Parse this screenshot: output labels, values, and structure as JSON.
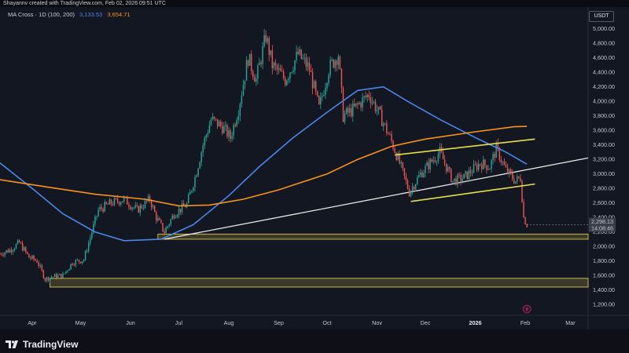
{
  "header": {
    "attribution": "Shayannv created with TradingView.com, Feb 02, 2026 09:51 UTC"
  },
  "legend": {
    "title": "MA Cross · 1D (100, 200)",
    "ma100_value": "3,133.53",
    "ma200_value": "3,654.71"
  },
  "currency_label": "USDT",
  "branding": {
    "logo_text": "TradingView"
  },
  "colors": {
    "background": "#131722",
    "candle_up": "#26a69a",
    "candle_down": "#ef5350",
    "ma100": "#4a86e8",
    "ma200": "#f7931a",
    "zone": "#c9b84a",
    "channel": "#e8e04a",
    "trendline": "#e8e8e8"
  },
  "chart_data": {
    "type": "candlestick",
    "ylim": [
      1050,
      5300
    ],
    "y_ticks": [
      1200,
      1400,
      1600,
      1800,
      2000,
      2200,
      2400,
      2600,
      2800,
      3000,
      3200,
      3400,
      3600,
      3800,
      4000,
      4200,
      4400,
      4600,
      4800,
      5000
    ],
    "y_tick_labels": [
      "1,200.00",
      "1,400.00",
      "1,600.00",
      "1,800.00",
      "2,000.00",
      "2,200.00",
      "2,400.00",
      "2,600.00",
      "2,800.00",
      "3,000.00",
      "3,200.00",
      "3,400.00",
      "3,600.00",
      "3,800.00",
      "4,000.00",
      "4,200.00",
      "4,400.00",
      "4,600.00",
      "4,800.00",
      "5,000.00"
    ],
    "x_range": [
      "2025-03-12",
      "2026-03-12"
    ],
    "x_ticks": [
      {
        "label": "Apr",
        "date": "2025-04-01"
      },
      {
        "label": "May",
        "date": "2025-05-01"
      },
      {
        "label": "Jun",
        "date": "2025-06-01"
      },
      {
        "label": "Jul",
        "date": "2025-07-01"
      },
      {
        "label": "Aug",
        "date": "2025-08-01"
      },
      {
        "label": "Sep",
        "date": "2025-09-01"
      },
      {
        "label": "Oct",
        "date": "2025-10-01"
      },
      {
        "label": "Nov",
        "date": "2025-11-01"
      },
      {
        "label": "Dec",
        "date": "2025-12-01"
      },
      {
        "label": "2026",
        "date": "2026-01-01",
        "bold": true
      },
      {
        "label": "Feb",
        "date": "2026-02-01"
      },
      {
        "label": "Mar",
        "date": "2026-03-01"
      }
    ],
    "price_path": [
      [
        "2025-03-12",
        1900
      ],
      [
        "2025-03-18",
        1950
      ],
      [
        "2025-03-24",
        2050
      ],
      [
        "2025-03-30",
        1850
      ],
      [
        "2025-04-04",
        1800
      ],
      [
        "2025-04-09",
        1550
      ],
      [
        "2025-04-13",
        1580
      ],
      [
        "2025-04-20",
        1600
      ],
      [
        "2025-04-26",
        1780
      ],
      [
        "2025-05-03",
        1820
      ],
      [
        "2025-05-08",
        2200
      ],
      [
        "2025-05-12",
        2500
      ],
      [
        "2025-05-20",
        2600
      ],
      [
        "2025-05-28",
        2650
      ],
      [
        "2025-06-05",
        2500
      ],
      [
        "2025-06-13",
        2650
      ],
      [
        "2025-06-17",
        2400
      ],
      [
        "2025-06-22",
        2200
      ],
      [
        "2025-06-28",
        2450
      ],
      [
        "2025-07-06",
        2580
      ],
      [
        "2025-07-11",
        2950
      ],
      [
        "2025-07-16",
        3400
      ],
      [
        "2025-07-21",
        3750
      ],
      [
        "2025-07-28",
        3650
      ],
      [
        "2025-08-02",
        3500
      ],
      [
        "2025-08-07",
        3900
      ],
      [
        "2025-08-13",
        4600
      ],
      [
        "2025-08-18",
        4300
      ],
      [
        "2025-08-24",
        4900
      ],
      [
        "2025-08-28",
        4500
      ],
      [
        "2025-09-05",
        4300
      ],
      [
        "2025-09-13",
        4650
      ],
      [
        "2025-09-20",
        4450
      ],
      [
        "2025-09-26",
        3900
      ],
      [
        "2025-10-02",
        4450
      ],
      [
        "2025-10-08",
        4650
      ],
      [
        "2025-10-11",
        3800
      ],
      [
        "2025-10-18",
        3900
      ],
      [
        "2025-10-27",
        4100
      ],
      [
        "2025-11-03",
        3800
      ],
      [
        "2025-11-10",
        3450
      ],
      [
        "2025-11-15",
        3150
      ],
      [
        "2025-11-21",
        2750
      ],
      [
        "2025-11-28",
        3000
      ],
      [
        "2025-12-04",
        3150
      ],
      [
        "2025-12-10",
        3300
      ],
      [
        "2025-12-18",
        2900
      ],
      [
        "2025-12-25",
        2950
      ],
      [
        "2026-01-04",
        3150
      ],
      [
        "2026-01-10",
        3100
      ],
      [
        "2026-01-14",
        3350
      ],
      [
        "2026-01-20",
        3050
      ],
      [
        "2026-01-26",
        2900
      ],
      [
        "2026-01-29",
        2950
      ],
      [
        "2026-01-31",
        2400
      ],
      [
        "2026-02-02",
        2298
      ]
    ],
    "series": [
      {
        "name": "MA 100",
        "values": [
          [
            "2025-03-12",
            3150
          ],
          [
            "2025-04-01",
            2800
          ],
          [
            "2025-04-20",
            2450
          ],
          [
            "2025-05-10",
            2200
          ],
          [
            "2025-05-28",
            2080
          ],
          [
            "2025-06-20",
            2100
          ],
          [
            "2025-07-10",
            2300
          ],
          [
            "2025-08-01",
            2700
          ],
          [
            "2025-08-20",
            3100
          ],
          [
            "2025-09-10",
            3500
          ],
          [
            "2025-10-01",
            3850
          ],
          [
            "2025-10-20",
            4150
          ],
          [
            "2025-11-05",
            4200
          ],
          [
            "2025-11-20",
            4000
          ],
          [
            "2025-12-10",
            3750
          ],
          [
            "2026-01-01",
            3500
          ],
          [
            "2026-01-20",
            3300
          ],
          [
            "2026-02-02",
            3133.53
          ]
        ]
      },
      {
        "name": "MA 200",
        "values": [
          [
            "2025-03-12",
            2920
          ],
          [
            "2025-04-10",
            2820
          ],
          [
            "2025-05-10",
            2720
          ],
          [
            "2025-06-10",
            2650
          ],
          [
            "2025-07-01",
            2560
          ],
          [
            "2025-07-20",
            2570
          ],
          [
            "2025-08-10",
            2650
          ],
          [
            "2025-09-01",
            2780
          ],
          [
            "2025-10-01",
            3000
          ],
          [
            "2025-10-20",
            3200
          ],
          [
            "2025-11-10",
            3380
          ],
          [
            "2025-12-01",
            3480
          ],
          [
            "2026-01-01",
            3580
          ],
          [
            "2026-01-25",
            3650
          ],
          [
            "2026-02-02",
            3654.71
          ]
        ]
      }
    ],
    "annotations": {
      "support_zones": [
        [
          2100,
          2170
        ],
        [
          1440,
          1560
        ]
      ],
      "trendline": [
        [
          "2025-06-22",
          2100
        ],
        [
          "2026-03-12",
          3220
        ]
      ],
      "channel_upper": [
        [
          "2025-11-12",
          3260
        ],
        [
          "2026-02-07",
          3480
        ]
      ],
      "channel_lower": [
        [
          "2025-11-22",
          2620
        ],
        [
          "2026-02-07",
          2860
        ]
      ]
    },
    "last_price_label": "2,298.13",
    "countdown_label": "14:08:46"
  }
}
